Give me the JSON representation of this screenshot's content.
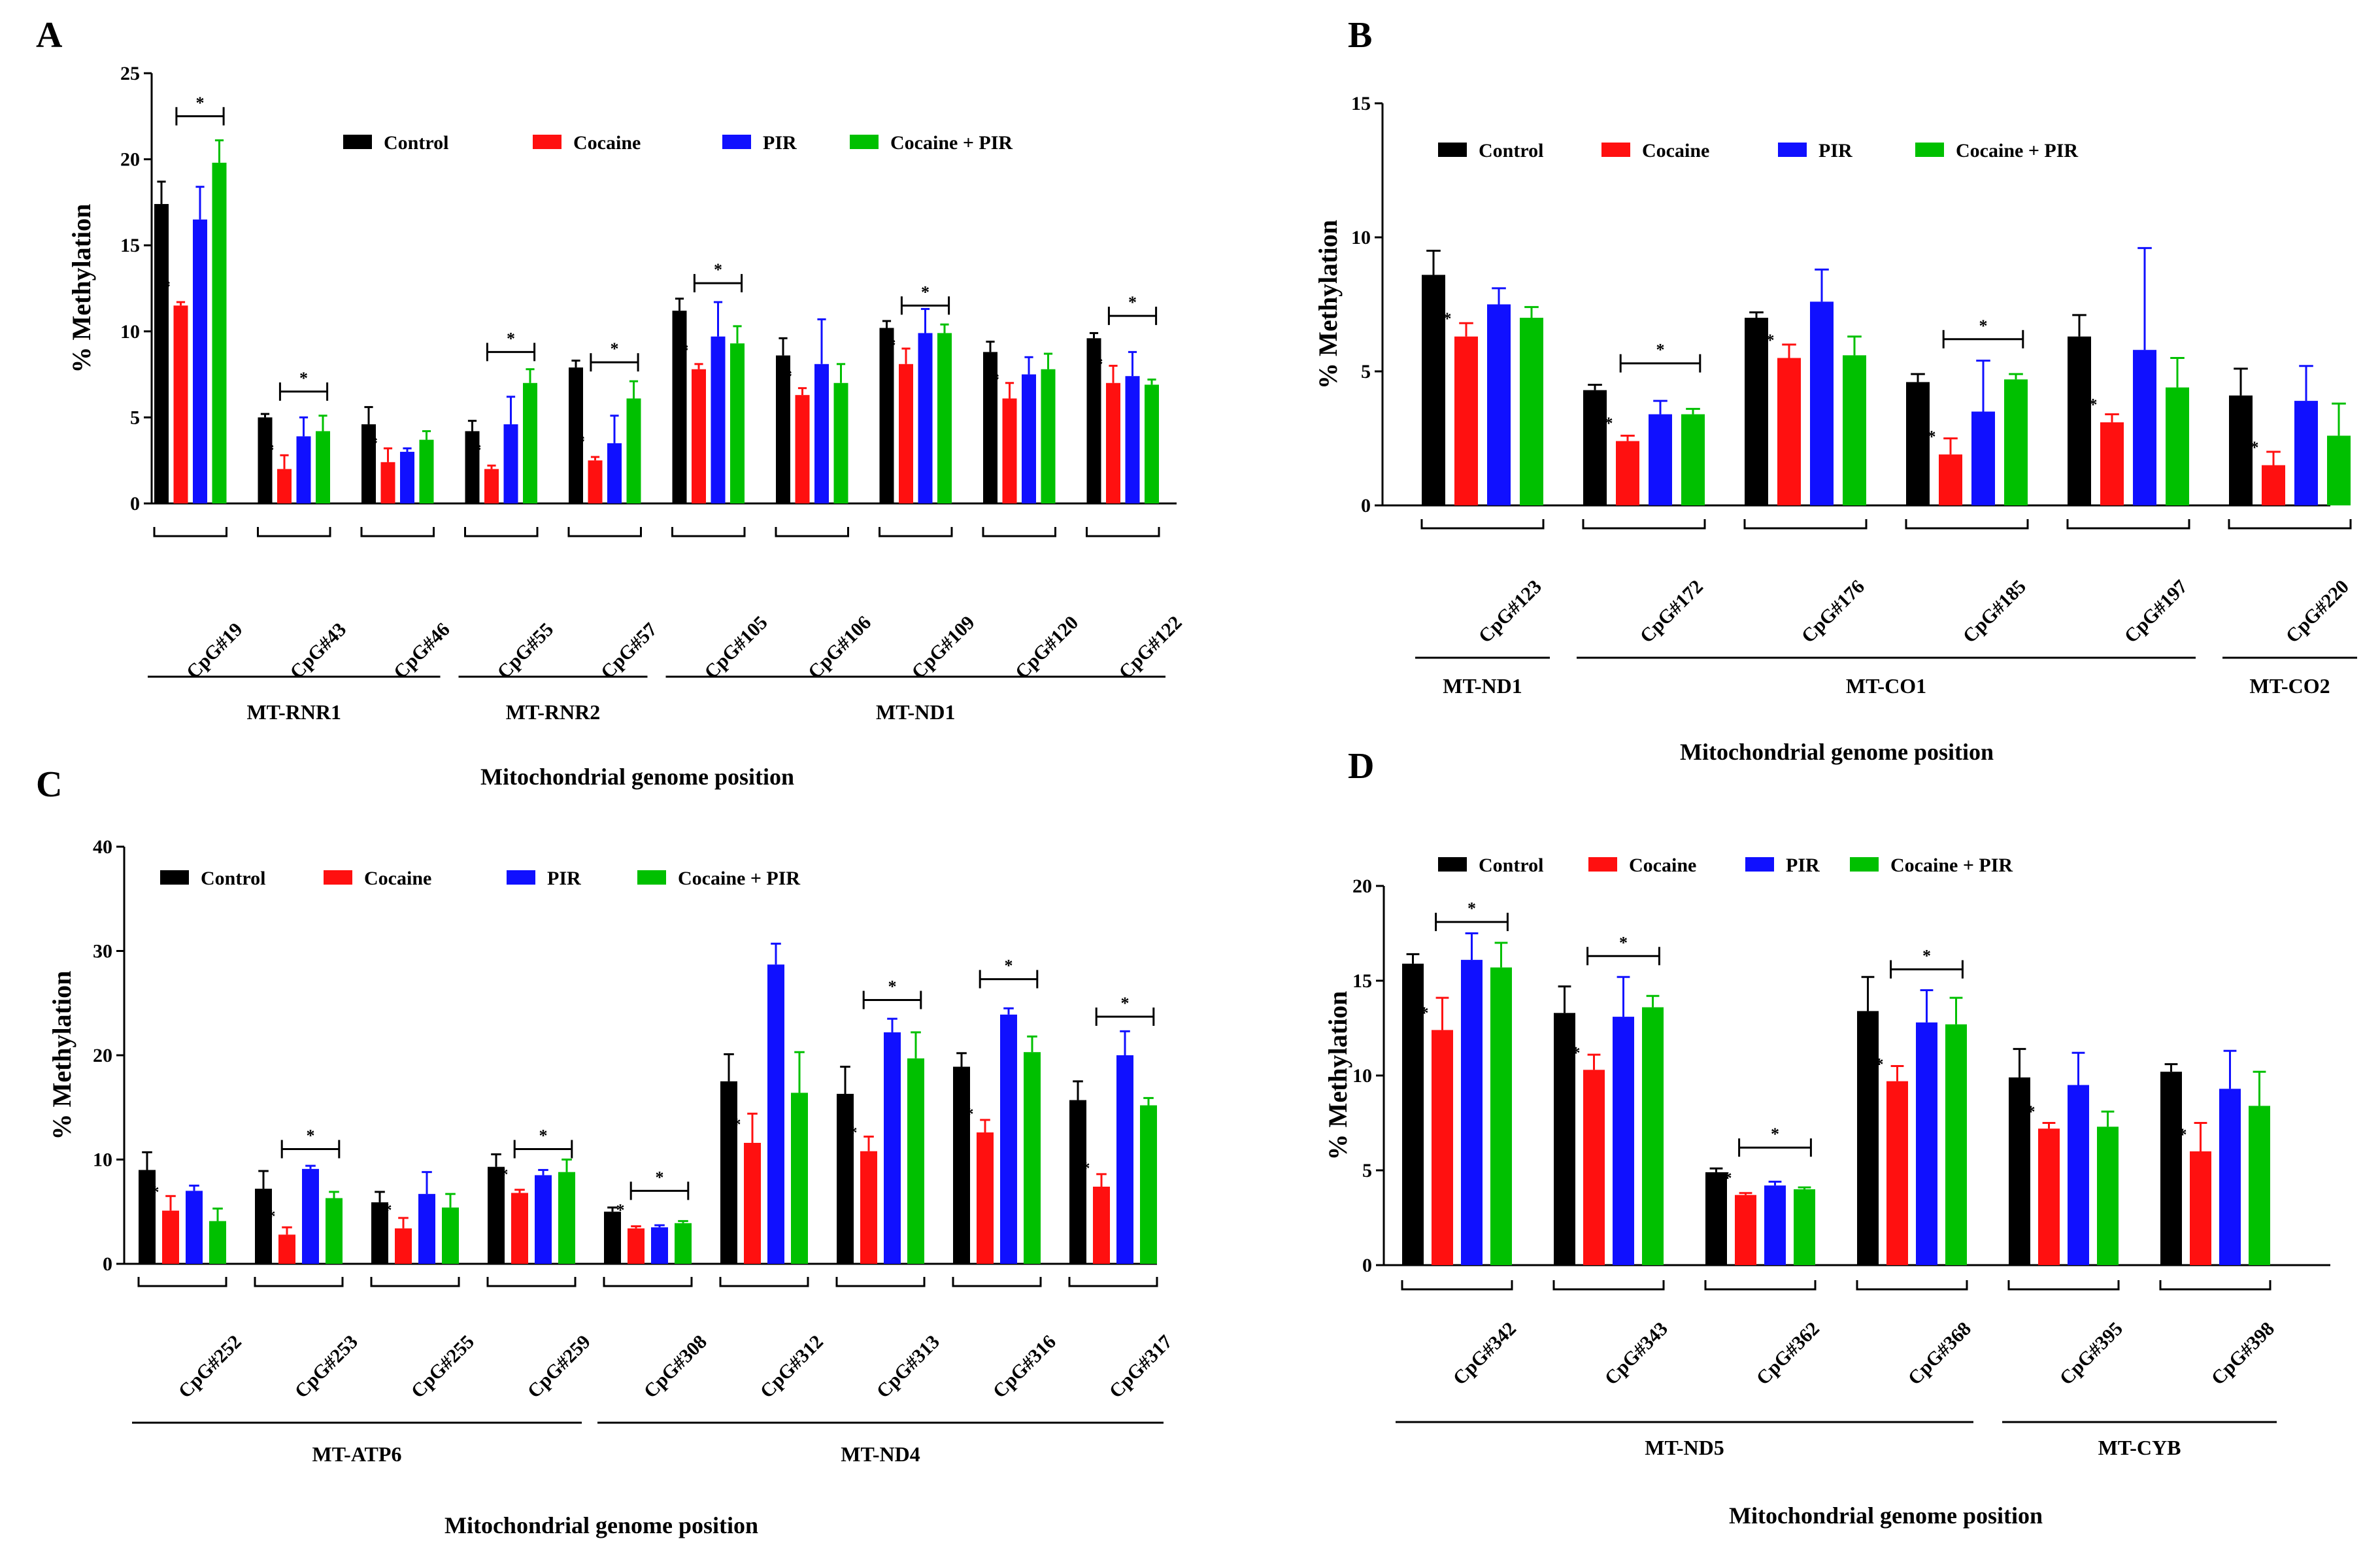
{
  "colors": {
    "Control": "#000000",
    "Cocaine": "#ff1010",
    "PIR": "#1010ff",
    "Cocaine + PIR": "#00c000"
  },
  "series_names": [
    "Control",
    "Cocaine",
    "PIR",
    "Cocaine + PIR"
  ],
  "chart_data": [
    {
      "type": "bar",
      "panel": "A",
      "ylabel": "% Methylation",
      "xlabel": "Mitochondrial genome position",
      "ylim": [
        0,
        25
      ],
      "yticks": [
        0,
        5,
        10,
        15,
        20,
        25
      ],
      "categories": [
        "CpG#19",
        "CpG#43",
        "CpG#46",
        "CpG#55",
        "CpG#57",
        "CpG#105",
        "CpG#106",
        "CpG#109",
        "CpG#120",
        "CpG#122"
      ],
      "series": [
        {
          "name": "Control",
          "values": [
            17.4,
            5.0,
            4.6,
            4.2,
            7.9,
            11.2,
            8.6,
            10.2,
            8.8,
            9.6
          ],
          "errors": [
            1.3,
            0.2,
            1.0,
            0.6,
            0.4,
            0.7,
            1.0,
            0.4,
            0.6,
            0.3
          ]
        },
        {
          "name": "Cocaine",
          "values": [
            11.5,
            2.0,
            2.4,
            2.0,
            2.5,
            7.8,
            6.3,
            8.1,
            6.1,
            7.0
          ],
          "errors": [
            0.2,
            0.8,
            0.8,
            0.2,
            0.2,
            0.3,
            0.4,
            0.9,
            0.9,
            1.0
          ]
        },
        {
          "name": "PIR",
          "values": [
            16.5,
            3.9,
            3.0,
            4.6,
            3.5,
            9.7,
            8.1,
            9.9,
            7.5,
            7.4
          ],
          "errors": [
            1.9,
            1.1,
            0.2,
            1.6,
            1.6,
            2.0,
            2.6,
            1.4,
            1.0,
            1.4
          ]
        },
        {
          "name": "Cocaine + PIR",
          "values": [
            19.8,
            4.2,
            3.7,
            7.0,
            6.1,
            9.3,
            7.0,
            9.9,
            7.8,
            6.9
          ],
          "errors": [
            1.3,
            0.9,
            0.5,
            0.8,
            1.0,
            1.0,
            1.1,
            0.5,
            0.9,
            0.3
          ]
        }
      ],
      "stars": [
        {
          "cat": 0,
          "series": 1
        },
        {
          "cat": 1,
          "series": 1
        },
        {
          "cat": 2,
          "series": 1
        },
        {
          "cat": 3,
          "series": 1
        },
        {
          "cat": 4,
          "series": 1
        },
        {
          "cat": 5,
          "series": 1
        },
        {
          "cat": 6,
          "series": 1
        },
        {
          "cat": 7,
          "series": 1
        },
        {
          "cat": 8,
          "series": 1
        },
        {
          "cat": 9,
          "series": 1
        }
      ],
      "brackets": [
        {
          "cat": 0,
          "value": 22.5
        },
        {
          "cat": 1,
          "value": 6.5
        },
        {
          "cat": 3,
          "value": 8.8
        },
        {
          "cat": 4,
          "value": 8.2
        },
        {
          "cat": 5,
          "value": 12.8
        },
        {
          "cat": 7,
          "value": 11.5
        },
        {
          "cat": 9,
          "value": 10.9
        }
      ],
      "genes": [
        {
          "label": "MT-RNR1",
          "from": 0,
          "to": 2
        },
        {
          "label": "MT-RNR2",
          "from": 3,
          "to": 4
        },
        {
          "label": "MT-ND1",
          "from": 5,
          "to": 9
        }
      ]
    },
    {
      "type": "bar",
      "panel": "B",
      "ylabel": "% Methylation",
      "xlabel": "Mitochondrial genome position",
      "ylim": [
        0,
        15
      ],
      "yticks": [
        0,
        5,
        10,
        15
      ],
      "categories": [
        "CpG#123",
        "CpG#172",
        "CpG#176",
        "CpG#185",
        "CpG#197",
        "CpG#220"
      ],
      "series": [
        {
          "name": "Control",
          "values": [
            8.6,
            4.3,
            7.0,
            4.6,
            6.3,
            4.1
          ],
          "errors": [
            0.9,
            0.2,
            0.2,
            0.3,
            0.8,
            1.0
          ]
        },
        {
          "name": "Cocaine",
          "values": [
            6.3,
            2.4,
            5.5,
            1.9,
            3.1,
            1.5
          ],
          "errors": [
            0.5,
            0.2,
            0.5,
            0.6,
            0.3,
            0.5
          ]
        },
        {
          "name": "PIR",
          "values": [
            7.5,
            3.4,
            7.6,
            3.5,
            5.8,
            3.9
          ],
          "errors": [
            0.6,
            0.5,
            1.2,
            1.9,
            3.8,
            1.3
          ]
        },
        {
          "name": "Cocaine + PIR",
          "values": [
            7.0,
            3.4,
            5.6,
            4.7,
            4.4,
            2.6
          ],
          "errors": [
            0.4,
            0.2,
            0.7,
            0.2,
            1.1,
            1.2
          ]
        }
      ],
      "stars": [
        {
          "cat": 0,
          "series": 1
        },
        {
          "cat": 1,
          "series": 1
        },
        {
          "cat": 2,
          "series": 1
        },
        {
          "cat": 3,
          "series": 1
        },
        {
          "cat": 4,
          "series": 1
        },
        {
          "cat": 5,
          "series": 1
        }
      ],
      "brackets": [
        {
          "cat": 1,
          "value": 5.3
        },
        {
          "cat": 3,
          "value": 6.2
        }
      ],
      "genes": [
        {
          "label": "MT-ND1",
          "from": 0,
          "to": 0
        },
        {
          "label": "MT-CO1",
          "from": 1,
          "to": 4
        },
        {
          "label": "MT-CO2",
          "from": 5,
          "to": 5
        }
      ]
    },
    {
      "type": "bar",
      "panel": "C",
      "ylabel": "% Methylation",
      "xlabel": "Mitochondrial genome position",
      "ylim": [
        0,
        40
      ],
      "yticks": [
        0,
        10,
        20,
        30,
        40
      ],
      "categories": [
        "CpG#252",
        "CpG#253",
        "CpG#255",
        "CpG#259",
        "CpG#308",
        "CpG#312",
        "CpG#313",
        "CpG#316",
        "CpG#317"
      ],
      "series": [
        {
          "name": "Control",
          "values": [
            9.0,
            7.2,
            5.9,
            9.3,
            5.0,
            17.5,
            16.3,
            18.9,
            15.7
          ],
          "errors": [
            1.7,
            1.7,
            1.0,
            1.2,
            0.4,
            2.6,
            2.6,
            1.3,
            1.8
          ]
        },
        {
          "name": "Cocaine",
          "values": [
            5.1,
            2.8,
            3.4,
            6.8,
            3.4,
            11.6,
            10.8,
            12.6,
            7.4
          ],
          "errors": [
            1.4,
            0.7,
            1.0,
            0.3,
            0.2,
            2.8,
            1.4,
            1.2,
            1.2
          ]
        },
        {
          "name": "PIR",
          "values": [
            7.0,
            9.1,
            6.7,
            8.5,
            3.5,
            28.7,
            22.2,
            23.9,
            20.0
          ],
          "errors": [
            0.5,
            0.3,
            2.1,
            0.5,
            0.2,
            2.0,
            1.3,
            0.6,
            2.3
          ]
        },
        {
          "name": "Cocaine + PIR",
          "values": [
            4.1,
            6.3,
            5.4,
            8.8,
            3.9,
            16.4,
            19.7,
            20.3,
            15.2
          ],
          "errors": [
            1.2,
            0.6,
            1.3,
            1.2,
            0.2,
            3.9,
            2.5,
            1.5,
            0.7
          ]
        }
      ],
      "stars": [
        {
          "cat": 0,
          "series": 1
        },
        {
          "cat": 1,
          "series": 1
        },
        {
          "cat": 2,
          "series": 1
        },
        {
          "cat": 3,
          "series": 1
        },
        {
          "cat": 4,
          "series": 1
        },
        {
          "cat": 5,
          "series": 1
        },
        {
          "cat": 6,
          "series": 1
        },
        {
          "cat": 7,
          "series": 1
        },
        {
          "cat": 8,
          "series": 1
        }
      ],
      "brackets": [
        {
          "cat": 1,
          "value": 11.0
        },
        {
          "cat": 3,
          "value": 11.0
        },
        {
          "cat": 4,
          "value": 7.0
        },
        {
          "cat": 6,
          "value": 25.3
        },
        {
          "cat": 7,
          "value": 27.3
        },
        {
          "cat": 8,
          "value": 23.7
        }
      ],
      "genes": [
        {
          "label": "MT-ATP6",
          "from": 0,
          "to": 3
        },
        {
          "label": "MT-ND4",
          "from": 4,
          "to": 8
        }
      ]
    },
    {
      "type": "bar",
      "panel": "D",
      "ylabel": "% Methylation",
      "xlabel": "Mitochondrial genome position",
      "ylim": [
        0,
        20
      ],
      "yticks": [
        0,
        5,
        10,
        15,
        20
      ],
      "categories": [
        "CpG#342",
        "CpG#343",
        "CpG#362",
        "CpG#368",
        "CpG#395",
        "CpG#398"
      ],
      "series": [
        {
          "name": "Control",
          "values": [
            15.9,
            13.3,
            4.9,
            13.4,
            9.9,
            10.2
          ],
          "errors": [
            0.5,
            1.4,
            0.2,
            1.8,
            1.5,
            0.4
          ]
        },
        {
          "name": "Cocaine",
          "values": [
            12.4,
            10.3,
            3.7,
            9.7,
            7.2,
            6.0
          ],
          "errors": [
            1.7,
            0.8,
            0.1,
            0.8,
            0.3,
            1.5
          ]
        },
        {
          "name": "PIR",
          "values": [
            16.1,
            13.1,
            4.2,
            12.8,
            9.5,
            9.3
          ],
          "errors": [
            1.4,
            2.1,
            0.2,
            1.7,
            1.7,
            2.0
          ]
        },
        {
          "name": "Cocaine + PIR",
          "values": [
            15.7,
            13.6,
            4.0,
            12.7,
            7.3,
            8.4
          ],
          "errors": [
            1.3,
            0.6,
            0.1,
            1.4,
            0.8,
            1.8
          ]
        }
      ],
      "stars": [
        {
          "cat": 0,
          "series": 1
        },
        {
          "cat": 1,
          "series": 1
        },
        {
          "cat": 2,
          "series": 1
        },
        {
          "cat": 3,
          "series": 1
        },
        {
          "cat": 4,
          "series": 1
        },
        {
          "cat": 5,
          "series": 1
        }
      ],
      "brackets": [
        {
          "cat": 0,
          "value": 18.1
        },
        {
          "cat": 1,
          "value": 16.3
        },
        {
          "cat": 2,
          "value": 6.2
        },
        {
          "cat": 3,
          "value": 15.6
        }
      ],
      "genes": [
        {
          "label": "MT-ND5",
          "from": 0,
          "to": 3
        },
        {
          "label": "MT-CYB",
          "from": 4,
          "to": 5
        }
      ]
    }
  ]
}
